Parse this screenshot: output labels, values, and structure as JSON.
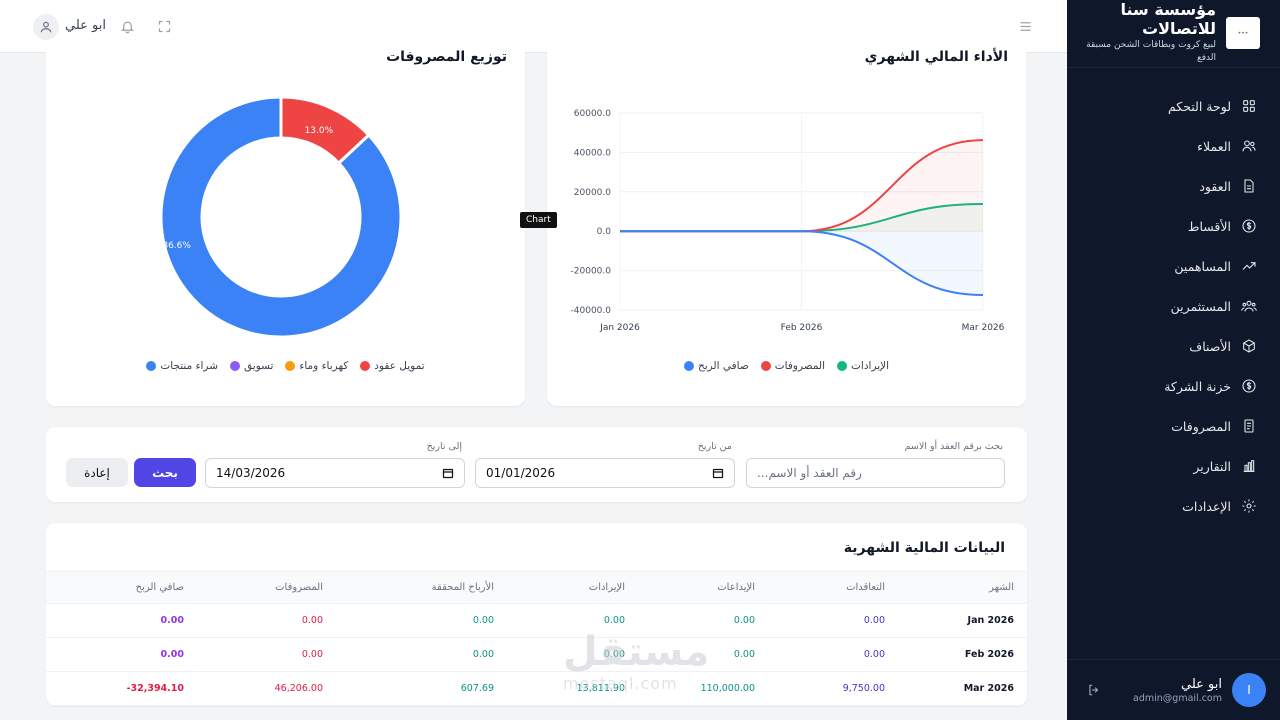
{
  "sidebar": {
    "brand_title": "مؤسسة سنا للاتصالات",
    "brand_sub": "لبيع كروت وبطاقات الشحن مسبقة الدفع",
    "items": [
      {
        "label": "لوحة التحكم",
        "icon": "grid-icon"
      },
      {
        "label": "العملاء",
        "icon": "users-icon"
      },
      {
        "label": "العقود",
        "icon": "document-icon"
      },
      {
        "label": "الأقساط",
        "icon": "dollar-icon"
      },
      {
        "label": "المساهمين",
        "icon": "trending-up-icon"
      },
      {
        "label": "المستثمرين",
        "icon": "team-icon"
      },
      {
        "label": "الأصناف",
        "icon": "box-icon"
      },
      {
        "label": "خزنة الشركة",
        "icon": "dollar-icon"
      },
      {
        "label": "المصروفات",
        "icon": "receipt-icon"
      },
      {
        "label": "التقارير",
        "icon": "bar-chart-icon"
      },
      {
        "label": "الإعدادات",
        "icon": "gear-icon"
      }
    ],
    "user": {
      "avatar": "I",
      "name": "ابو علي",
      "email": "admin@gmail.com"
    }
  },
  "topbar": {
    "user_name": "ابو علي"
  },
  "expenses_card": {
    "title": "توزيع المصروفات",
    "legend": [
      {
        "label": "شراء منتجات",
        "color": "#3b82f6"
      },
      {
        "label": "تسويق",
        "color": "#8b5cf6"
      },
      {
        "label": "كهرباء وماء",
        "color": "#f59e0b"
      },
      {
        "label": "تمويل عقود",
        "color": "#ef4444"
      }
    ]
  },
  "performance_card": {
    "title": "الأداء المالي الشهري",
    "tooltip": "Chart",
    "legend": [
      {
        "label": "صافي الربح",
        "color": "#3b82f6"
      },
      {
        "label": "المصروفات",
        "color": "#ef4444"
      },
      {
        "label": "الإيرادات",
        "color": "#10b981"
      }
    ]
  },
  "chart_data": [
    {
      "type": "pie",
      "title": "توزيع المصروفات",
      "categories": [
        "شراء منتجات",
        "تسويق",
        "كهرباء وماء",
        "تمويل عقود"
      ],
      "values": [
        86.6,
        0,
        0,
        13.0
      ],
      "data_labels": [
        "86.6%",
        "",
        "",
        "13.0%"
      ],
      "colors": [
        "#3b82f6",
        "#8b5cf6",
        "#f59e0b",
        "#ef4444"
      ],
      "legend": "bottom"
    },
    {
      "type": "line",
      "title": "الأداء المالي الشهري",
      "x": [
        "Jan 2026",
        "Feb 2026",
        "Mar 2026"
      ],
      "yticks": [
        "60000.0",
        "40000.0",
        "20000.0",
        "0.0",
        "-20000.0",
        "-40000.0"
      ],
      "ylim": [
        -40000,
        60000
      ],
      "series": [
        {
          "name": "الإيرادات",
          "values": [
            0,
            0,
            13811.9
          ],
          "color": "#10b981"
        },
        {
          "name": "المصروفات",
          "values": [
            0,
            0,
            46206
          ],
          "color": "#ef4444"
        },
        {
          "name": "صافي الربح",
          "values": [
            0,
            0,
            -32394.1
          ],
          "color": "#3b82f6"
        }
      ],
      "grid": true,
      "legend": "bottom"
    }
  ],
  "filter": {
    "search_label": "بحث برقم العقد أو الاسم",
    "search_placeholder": "رقم العقد أو الاسم...",
    "from_label": "من تاريخ",
    "from_value": "01/01/2026",
    "to_label": "إلى تاريخ",
    "to_value": "14/03/2026",
    "search_button": "بحث",
    "reset_button": "إعادة"
  },
  "table": {
    "title": "البيانات المالية الشهرية",
    "headers": [
      "الشهر",
      "التعاقدات",
      "الإيداعات",
      "الإيرادات",
      "الأرباح المحققة",
      "المصروفات",
      "صافي الربح"
    ],
    "rows": [
      [
        "Jan 2026",
        "0.00",
        "0.00",
        "0.00",
        "0.00",
        "0.00",
        "0.00"
      ],
      [
        "Feb 2026",
        "0.00",
        "0.00",
        "0.00",
        "0.00",
        "0.00",
        "0.00"
      ],
      [
        "Mar 2026",
        "9,750.00",
        "110,000.00",
        "13,811.90",
        "607.69",
        "46,206.00",
        "-32,394.10"
      ]
    ],
    "column_colors": [
      "#111827",
      "#4338ca",
      "#0d9488",
      "#0d9488",
      "#0d9488",
      "#e11d48",
      "#9333ea"
    ],
    "negative_color": "#e11d48"
  },
  "watermark": {
    "text": "مستقل",
    "sub": "mostaql.com"
  }
}
